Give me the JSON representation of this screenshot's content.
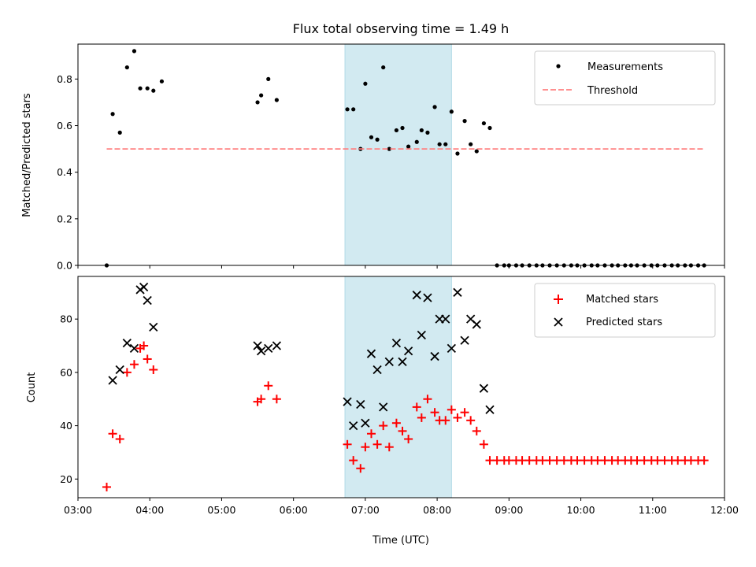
{
  "chart_data": [
    {
      "type": "scatter",
      "title": "Flux total observing time = 1.49 h",
      "xlabel": "",
      "ylabel": "Matched/Predicted stars",
      "xlim": [
        "03:00",
        "12:00"
      ],
      "ylim": [
        0,
        0.95
      ],
      "yticks": [
        0.0,
        0.2,
        0.4,
        0.6,
        0.8
      ],
      "ytick_labels": [
        "0.0",
        "0.2",
        "0.4",
        "0.6",
        "0.8"
      ],
      "highlight_span": {
        "from": "06:43",
        "to": "08:12",
        "color": "#add8e6"
      },
      "legend_position": "top-right",
      "grid": false,
      "series": [
        {
          "name": "Measurements",
          "kind": "scatter",
          "color": "#000000",
          "x": [
            "03:24",
            "03:29",
            "03:35",
            "03:41",
            "03:47",
            "03:52",
            "03:58",
            "04:03",
            "04:10",
            "05:30",
            "05:33",
            "05:39",
            "05:46",
            "06:45",
            "06:50",
            "06:56",
            "07:00",
            "07:05",
            "07:10",
            "07:15",
            "07:20",
            "07:26",
            "07:31",
            "07:36",
            "07:43",
            "07:47",
            "07:52",
            "07:58",
            "08:02",
            "08:07",
            "08:12",
            "08:17",
            "08:23",
            "08:28",
            "08:33",
            "08:39",
            "08:44",
            "08:50",
            "08:56",
            "09:00",
            "09:06",
            "09:11",
            "09:17",
            "09:23",
            "09:28",
            "09:34",
            "09:40",
            "09:46",
            "09:52",
            "09:57",
            "10:03",
            "10:09",
            "10:14",
            "10:20",
            "10:26",
            "10:31",
            "10:37",
            "10:42",
            "10:47",
            "10:53",
            "10:59",
            "11:04",
            "11:10",
            "11:16",
            "11:21",
            "11:27",
            "11:32",
            "11:38",
            "11:43"
          ],
          "y": [
            0.0,
            0.65,
            0.57,
            0.85,
            0.92,
            0.76,
            0.76,
            0.75,
            0.79,
            0.7,
            0.73,
            0.8,
            0.71,
            0.67,
            0.67,
            0.5,
            0.78,
            0.55,
            0.54,
            0.85,
            0.5,
            0.58,
            0.59,
            0.51,
            0.53,
            0.58,
            0.57,
            0.68,
            0.52,
            0.52,
            0.66,
            0.48,
            0.62,
            0.52,
            0.49,
            0.61,
            0.59,
            0.0,
            0.0,
            0.0,
            0.0,
            0.0,
            0.0,
            0.0,
            0.0,
            0.0,
            0.0,
            0.0,
            0.0,
            0.0,
            0.0,
            0.0,
            0.0,
            0.0,
            0.0,
            0.0,
            0.0,
            0.0,
            0.0,
            0.0,
            0.0,
            0.0,
            0.0,
            0.0,
            0.0,
            0.0,
            0.0,
            0.0,
            0.0
          ]
        },
        {
          "name": "Threshold",
          "kind": "line",
          "style": "dashed",
          "color": "#ff8080",
          "x": [
            "03:24",
            "11:43"
          ],
          "y": [
            0.5,
            0.5
          ]
        }
      ]
    },
    {
      "type": "scatter",
      "title": "",
      "xlabel": "Time (UTC)",
      "ylabel": "Count",
      "xlim": [
        "03:00",
        "12:00"
      ],
      "ylim": [
        13,
        96
      ],
      "xticks": [
        "03:00",
        "04:00",
        "05:00",
        "06:00",
        "07:00",
        "08:00",
        "09:00",
        "10:00",
        "11:00",
        "12:00"
      ],
      "yticks": [
        20,
        40,
        60,
        80
      ],
      "ytick_labels": [
        "20",
        "40",
        "60",
        "80"
      ],
      "highlight_span": {
        "from": "06:43",
        "to": "08:12",
        "color": "#add8e6"
      },
      "legend_position": "top-right",
      "grid": false,
      "series": [
        {
          "name": "Matched stars",
          "kind": "scatter",
          "marker": "plus",
          "color": "#ff0000",
          "x": [
            "03:24",
            "03:29",
            "03:35",
            "03:41",
            "03:47",
            "03:52",
            "03:55",
            "03:58",
            "04:03",
            "05:30",
            "05:33",
            "05:39",
            "05:46",
            "06:45",
            "06:50",
            "06:56",
            "07:00",
            "07:05",
            "07:10",
            "07:15",
            "07:20",
            "07:26",
            "07:31",
            "07:36",
            "07:43",
            "07:47",
            "07:52",
            "07:58",
            "08:02",
            "08:07",
            "08:12",
            "08:17",
            "08:23",
            "08:28",
            "08:33",
            "08:39",
            "08:44",
            "08:50",
            "08:56",
            "09:00",
            "09:06",
            "09:11",
            "09:17",
            "09:23",
            "09:28",
            "09:34",
            "09:40",
            "09:46",
            "09:52",
            "09:57",
            "10:03",
            "10:09",
            "10:14",
            "10:20",
            "10:26",
            "10:31",
            "10:37",
            "10:42",
            "10:47",
            "10:53",
            "10:59",
            "11:04",
            "11:10",
            "11:16",
            "11:21",
            "11:27",
            "11:32",
            "11:38",
            "11:43"
          ],
          "y": [
            17,
            37,
            35,
            60,
            63,
            69,
            70,
            65,
            61,
            49,
            50,
            55,
            50,
            33,
            27,
            24,
            32,
            37,
            33,
            40,
            32,
            41,
            38,
            35,
            47,
            43,
            50,
            45,
            42,
            42,
            46,
            43,
            45,
            42,
            38,
            33,
            27,
            27,
            27,
            27,
            27,
            27,
            27,
            27,
            27,
            27,
            27,
            27,
            27,
            27,
            27,
            27,
            27,
            27,
            27,
            27,
            27,
            27,
            27,
            27,
            27,
            27,
            27,
            27,
            27,
            27,
            27,
            27,
            27
          ]
        },
        {
          "name": "Predicted stars",
          "kind": "scatter",
          "marker": "x",
          "color": "#000000",
          "x": [
            "03:29",
            "03:35",
            "03:41",
            "03:47",
            "03:52",
            "03:55",
            "03:58",
            "04:03",
            "05:30",
            "05:33",
            "05:39",
            "05:46",
            "06:45",
            "06:50",
            "06:56",
            "07:00",
            "07:05",
            "07:10",
            "07:15",
            "07:20",
            "07:26",
            "07:31",
            "07:36",
            "07:43",
            "07:47",
            "07:52",
            "07:58",
            "08:02",
            "08:07",
            "08:12",
            "08:17",
            "08:23",
            "08:28",
            "08:33",
            "08:39",
            "08:44"
          ],
          "y": [
            57,
            61,
            71,
            69,
            91,
            92,
            87,
            77,
            70,
            68,
            69,
            70,
            49,
            40,
            48,
            41,
            67,
            61,
            47,
            64,
            71,
            64,
            68,
            89,
            74,
            88,
            66,
            80,
            80,
            69,
            90,
            72,
            80,
            78,
            54,
            46
          ]
        }
      ]
    }
  ]
}
